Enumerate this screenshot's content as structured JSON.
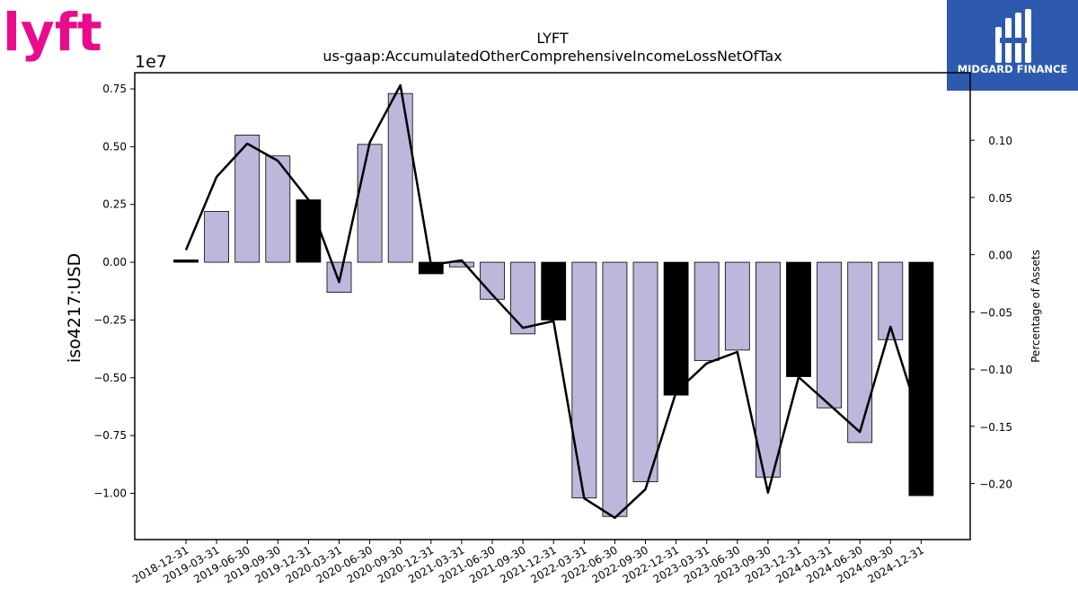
{
  "header": {
    "left_logo": "lyft",
    "right_logo_text": "MIDGARD FINANCE"
  },
  "colors": {
    "lyft_pink": "#ea0b8c",
    "midgard_blue": "#2d5aae",
    "bar_quarter": "#bcb8db",
    "bar_year_end": "#000000",
    "line": "#000000"
  },
  "chart_data": {
    "type": "bar",
    "title": "LYFT",
    "subtitle": "us-gaap:AccumulatedOtherComprehensiveIncomeLossNetOfTax",
    "ylabel": "iso4217:USD",
    "y_scale_note": "1e7",
    "y2label": "Percentage of Assets",
    "ylim": [
      -1.2,
      0.82
    ],
    "y2lim": [
      -0.249,
      0.159
    ],
    "yticks": [
      0.75,
      0.5,
      0.25,
      0.0,
      -0.25,
      -0.5,
      -0.75,
      -1.0
    ],
    "yticklabels": [
      "0.75",
      "0.50",
      "0.25",
      "0.00",
      "−0.25",
      "−0.50",
      "−0.75",
      "−1.00"
    ],
    "y2ticks": [
      0.1,
      0.05,
      0.0,
      -0.05,
      -0.1,
      -0.15,
      -0.2
    ],
    "y2ticklabels": [
      "0.10",
      "0.05",
      "0.00",
      "−0.05",
      "−0.10",
      "−0.15",
      "−0.20"
    ],
    "categories": [
      "2018-12-31",
      "2019-03-31",
      "2019-06-30",
      "2019-09-30",
      "2019-12-31",
      "2020-03-31",
      "2020-06-30",
      "2020-09-30",
      "2020-12-31",
      "2021-03-31",
      "2021-06-30",
      "2021-09-30",
      "2021-12-31",
      "2022-03-31",
      "2022-06-30",
      "2022-09-30",
      "2022-12-31",
      "2023-03-31",
      "2023-06-30",
      "2023-09-30",
      "2023-12-31",
      "2024-03-31",
      "2024-06-30",
      "2024-09-30",
      "2024-12-31"
    ],
    "series": [
      {
        "values": [
          0.01,
          0.22,
          0.55,
          0.46,
          0.27,
          -0.13,
          0.51,
          0.73,
          -0.05,
          -0.02,
          -0.16,
          -0.31,
          -0.25,
          -1.02,
          -1.1,
          -0.95,
          -0.575,
          -0.425,
          -0.38,
          -0.93,
          -0.495,
          -0.63,
          -0.78,
          -0.335,
          -1.01
        ]
      },
      {
        "axis": "right",
        "values": [
          0.004,
          0.068,
          0.097,
          0.082,
          0.048,
          -0.024,
          0.098,
          0.148,
          -0.009,
          -0.005,
          -0.035,
          -0.064,
          -0.058,
          -0.213,
          -0.23,
          -0.205,
          -0.12,
          -0.095,
          -0.085,
          -0.208,
          -0.107,
          -0.131,
          -0.155,
          -0.063,
          -0.148
        ]
      }
    ],
    "year_end_black": true,
    "grid": false
  }
}
